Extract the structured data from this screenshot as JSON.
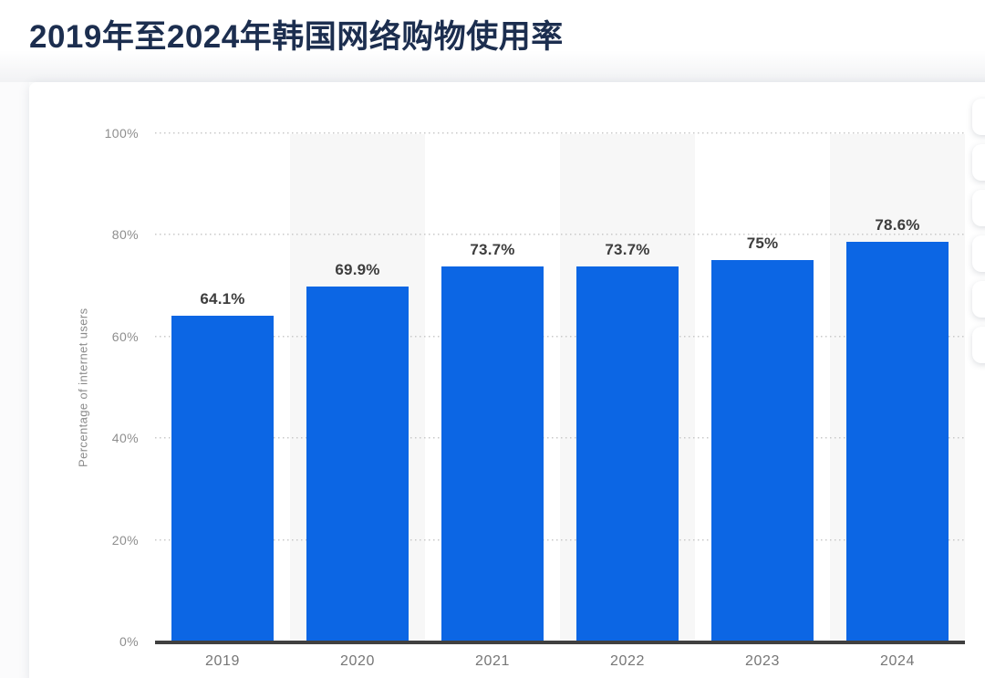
{
  "page_title": "2019年至2024年韩国网络购物使用率",
  "chart_data": {
    "type": "bar",
    "title": "2019年至2024年韩国网络购物使用率",
    "categories": [
      "2019",
      "2020",
      "2021",
      "2022",
      "2023",
      "2024"
    ],
    "values": [
      64.1,
      69.9,
      73.7,
      73.7,
      75,
      78.6
    ],
    "value_labels": [
      "64.1%",
      "69.9%",
      "73.7%",
      "73.7%",
      "75%",
      "78.6%"
    ],
    "xlabel": "",
    "ylabel": "Percentage of internet users",
    "ylim": [
      0,
      100
    ],
    "ytick_labels": [
      "0%",
      "20%",
      "40%",
      "60%",
      "80%",
      "100%"
    ],
    "grid": "horizontal-dotted",
    "legend": "none",
    "banded_categories": [
      "2020",
      "2022",
      "2024"
    ],
    "bar_color": "#0c66e4",
    "band_color": "#f7f7f7"
  },
  "colors": {
    "title": "#1c2e4f",
    "bar": "#0c66e4",
    "band": "#f7f7f7",
    "axis_line": "#404040",
    "gridline": "#c9c9c9",
    "ytick_label": "#8e8e8e",
    "xtick_label": "#767676",
    "value_label": "#3d3d3d",
    "y_axis_title": "#8a8a8a",
    "card_bg": "#ffffff"
  },
  "floating_toolbar": {
    "button_count": 6
  }
}
